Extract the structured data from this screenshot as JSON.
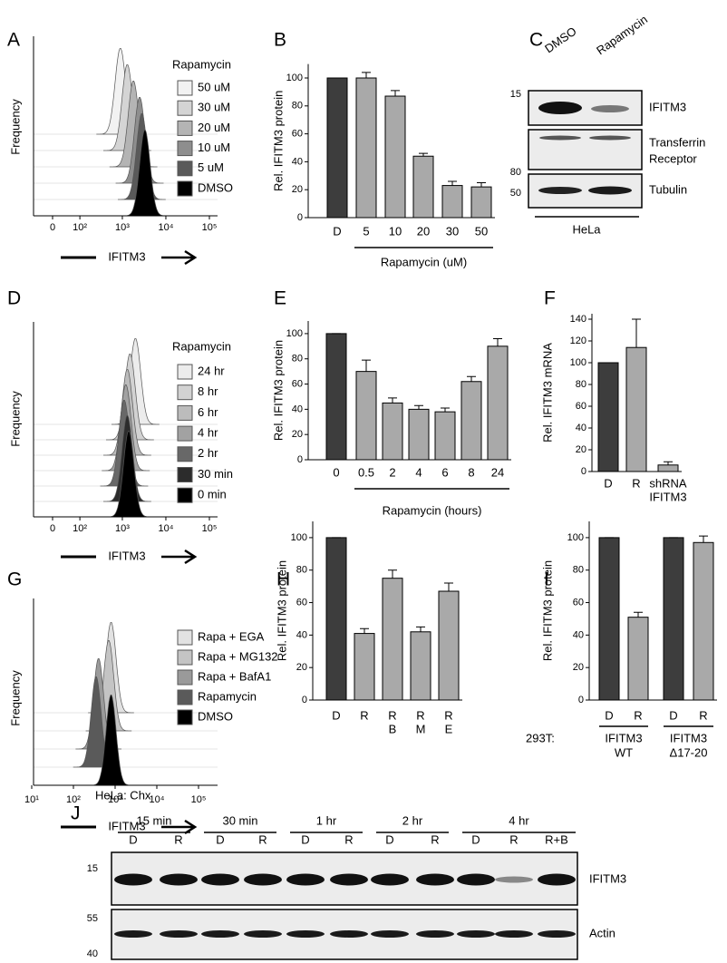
{
  "chart_data": [
    {
      "type": "histogram-overlay",
      "panel": "A",
      "ylabel": "Frequency",
      "xlabel": "IFITM3",
      "legend_title": "Rapamycin",
      "scale": "logicle",
      "xlim": [
        0,
        100000
      ],
      "xticks": [
        0,
        {
          "value": 100,
          "label": "10²"
        },
        {
          "value": 1000,
          "label": "10³"
        },
        {
          "value": 10000,
          "label": "10⁴"
        },
        {
          "value": 100000,
          "label": "10⁵"
        }
      ],
      "series": [
        {
          "name": "50 uM",
          "color": "#f2f2f2",
          "peak": 900
        },
        {
          "name": "30 uM",
          "color": "#d4d4d4",
          "peak": 1300
        },
        {
          "name": "20 uM",
          "color": "#b4b4b4",
          "peak": 1800
        },
        {
          "name": "10 uM",
          "color": "#8e8e8e",
          "peak": 2500
        },
        {
          "name": "5 uM",
          "color": "#5a5a5a",
          "peak": 2800
        },
        {
          "name": "DMSO",
          "color": "#000000",
          "peak": 3300
        }
      ]
    },
    {
      "type": "bar",
      "panel": "B",
      "ylabel": "Rel. IFITM3 protein",
      "xlabel": "Rapamycin (uM)",
      "categories": [
        "D",
        "5",
        "10",
        "20",
        "30",
        "50"
      ],
      "values": [
        100,
        100,
        87,
        44,
        23,
        22
      ],
      "errors": [
        0,
        4,
        4,
        2,
        3,
        3
      ],
      "colors": [
        "#3d3d3d",
        "#a9a9a9",
        "#a9a9a9",
        "#a9a9a9",
        "#a9a9a9",
        "#a9a9a9"
      ],
      "ylim": [
        0,
        110
      ],
      "yticks": [
        0,
        20,
        40,
        60,
        80,
        100
      ]
    },
    {
      "type": "histogram-overlay",
      "panel": "D",
      "ylabel": "Frequency",
      "xlabel": "IFITM3",
      "legend_title": "Rapamycin",
      "scale": "logicle",
      "xlim": [
        0,
        100000
      ],
      "xticks": [
        0,
        {
          "value": 100,
          "label": "10²"
        },
        {
          "value": 1000,
          "label": "10³"
        },
        {
          "value": 10000,
          "label": "10⁴"
        },
        {
          "value": 100000,
          "label": "10⁵"
        }
      ],
      "series": [
        {
          "name": "24 hr",
          "color": "#ececec",
          "peak": 2000
        },
        {
          "name": "8 hr",
          "color": "#d2d2d2",
          "peak": 1500
        },
        {
          "name": "6 hr",
          "color": "#bcbcbc",
          "peak": 1300
        },
        {
          "name": "4 hr",
          "color": "#a2a2a2",
          "peak": 1200
        },
        {
          "name": "2 hr",
          "color": "#686868",
          "peak": 1100
        },
        {
          "name": "30 min",
          "color": "#2c2c2c",
          "peak": 1300
        },
        {
          "name": "0 min",
          "color": "#000000",
          "peak": 1400
        }
      ]
    },
    {
      "type": "bar",
      "panel": "E",
      "ylabel": "Rel. IFITM3 protein",
      "xlabel": "Rapamycin (hours)",
      "categories": [
        "0",
        "0.5",
        "2",
        "4",
        "6",
        "8",
        "24"
      ],
      "values": [
        100,
        70,
        45,
        40,
        38,
        62,
        90
      ],
      "errors": [
        0,
        9,
        4,
        3,
        3,
        4,
        6
      ],
      "colors": [
        "#3d3d3d",
        "#a9a9a9",
        "#a9a9a9",
        "#a9a9a9",
        "#a9a9a9",
        "#a9a9a9",
        "#a9a9a9"
      ],
      "ylim": [
        0,
        110
      ],
      "yticks": [
        0,
        20,
        40,
        60,
        80,
        100
      ]
    },
    {
      "type": "bar",
      "panel": "F",
      "ylabel": "Rel. IFITM3 mRNA",
      "categories": [
        "D",
        "R",
        [
          "shRNA",
          "IFITM3"
        ]
      ],
      "values": [
        100,
        114,
        6
      ],
      "errors": [
        0,
        26,
        3
      ],
      "colors": [
        "#3d3d3d",
        "#a9a9a9",
        "#a9a9a9"
      ],
      "ylim": [
        0,
        145
      ],
      "yticks": [
        0,
        20,
        40,
        60,
        80,
        100,
        120,
        140
      ]
    },
    {
      "type": "histogram-overlay",
      "panel": "G",
      "ylabel": "Frequency",
      "xlabel": "IFITM3",
      "scale": "log",
      "xlim": [
        10,
        100000
      ],
      "xticks": [
        {
          "value": 10,
          "label": "10¹"
        },
        {
          "value": 100,
          "label": "10²"
        },
        {
          "value": 1000,
          "label": "10³"
        },
        {
          "value": 10000,
          "label": "10⁴"
        },
        {
          "value": 100000,
          "label": "10⁵"
        }
      ],
      "series": [
        {
          "name": "Rapa + EGA",
          "color": "#e2e2e2",
          "peak": 800
        },
        {
          "name": "Rapa + MG132",
          "color": "#c4c4c4",
          "peak": 700
        },
        {
          "name": "Rapa + BafA1",
          "color": "#9a9a9a",
          "peak": 400
        },
        {
          "name": "Rapamycin",
          "color": "#5a5a5a",
          "peak": 350
        },
        {
          "name": "DMSO",
          "color": "#000000",
          "peak": 800
        }
      ]
    },
    {
      "type": "bar",
      "panel": "H",
      "ylabel": "Rel. IFITM3 protein",
      "categories": [
        "D",
        "R",
        [
          "R",
          "B"
        ],
        [
          "R",
          "M"
        ],
        [
          "R",
          "E"
        ]
      ],
      "values": [
        100,
        41,
        75,
        42,
        67
      ],
      "errors": [
        0,
        3,
        5,
        3,
        5
      ],
      "colors": [
        "#3d3d3d",
        "#a9a9a9",
        "#a9a9a9",
        "#a9a9a9",
        "#a9a9a9"
      ],
      "ylim": [
        0,
        110
      ],
      "yticks": [
        0,
        20,
        40,
        60,
        80,
        100
      ]
    },
    {
      "type": "bar",
      "panel": "I",
      "ylabel": "Rel. IFITM3 protein",
      "categories": [
        "D",
        "R",
        "D",
        "R"
      ],
      "values": [
        100,
        51,
        100,
        97
      ],
      "errors": [
        0,
        3,
        0,
        4
      ],
      "colors": [
        "#3d3d3d",
        "#a9a9a9",
        "#3d3d3d",
        "#a9a9a9"
      ],
      "ylim": [
        0,
        110
      ],
      "yticks": [
        0,
        20,
        40,
        60,
        80,
        100
      ],
      "group_prefix": "293T:",
      "groups": [
        [
          "IFITM3",
          "WT"
        ],
        [
          "IFITM3",
          "Δ17-20"
        ]
      ]
    }
  ],
  "blot_c": {
    "panel": "C",
    "lanes": [
      "DMSO",
      "Rapamycin"
    ],
    "markers": [
      "15",
      "80",
      "50"
    ],
    "proteins": [
      [
        "IFITM3"
      ],
      [
        "Transferrin",
        "Receptor"
      ],
      [
        "Tubulin"
      ]
    ],
    "cell_line": "HeLa"
  },
  "blot_j": {
    "panel": "J",
    "title": "HeLa: Chx",
    "timepoints": [
      "15 min",
      "30 min",
      "1 hr",
      "2 hr",
      "4 hr"
    ],
    "lanes": [
      "D",
      "R",
      "D",
      "R",
      "D",
      "R",
      "D",
      "R",
      "D",
      "R",
      "R+B"
    ],
    "markers": [
      "15",
      "55",
      "40"
    ],
    "proteins": [
      "IFITM3",
      "Actin"
    ]
  }
}
